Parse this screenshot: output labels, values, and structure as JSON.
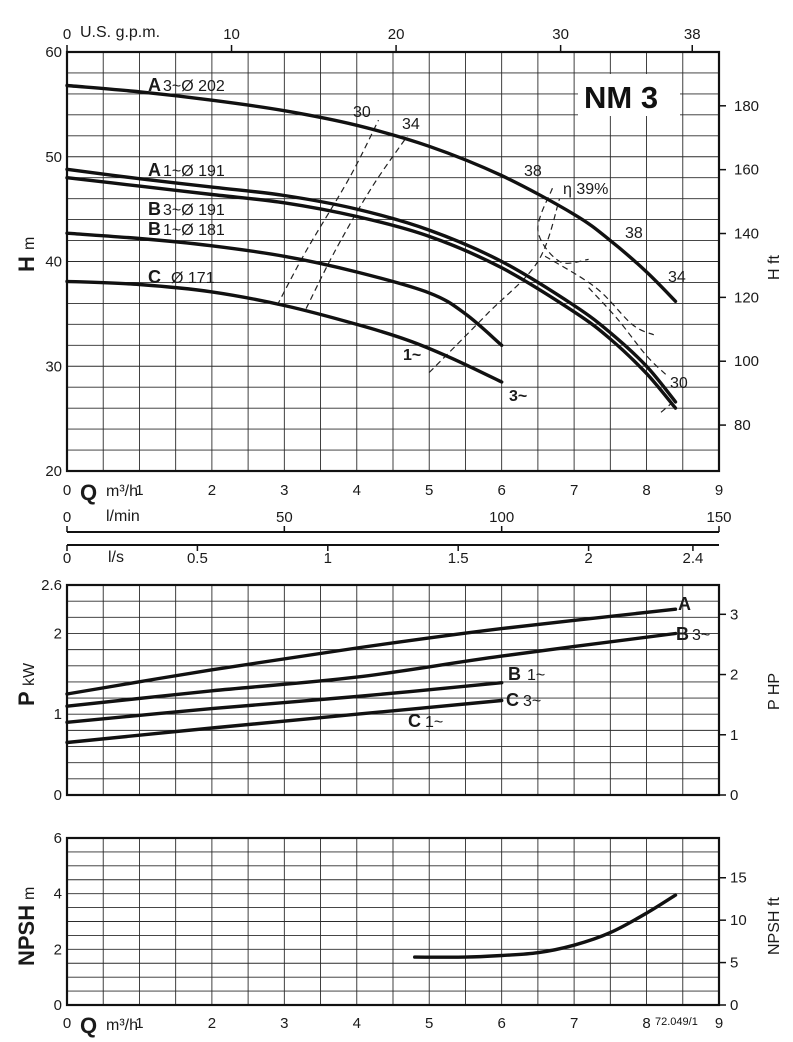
{
  "title": "NM 3",
  "footnote": "72.049/1",
  "axes": {
    "gpm_label": "U.S. g.p.m.",
    "gpm_ticks": [
      "0",
      "10",
      "20",
      "30",
      "38"
    ],
    "gpm_values": [
      0,
      10,
      20,
      30,
      38
    ],
    "q_label": "Q",
    "q_unit": "m³/h",
    "q_ticks": [
      "0",
      "1",
      "2",
      "3",
      "4",
      "5",
      "6",
      "7",
      "8",
      "9"
    ],
    "lmin_label": "l/min",
    "lmin_ticks": [
      "0",
      "50",
      "100",
      "150"
    ],
    "lmin_values": [
      0,
      50,
      100,
      150
    ],
    "ls_label": "l/s",
    "ls_ticks": [
      "0",
      "0.5",
      "1",
      "1.5",
      "2",
      "2.4"
    ],
    "ls_values": [
      0,
      0.5,
      1,
      1.5,
      2,
      2.4
    ],
    "h_label": "H",
    "h_unit": "m",
    "h_ticks": [
      "20",
      "30",
      "40",
      "50",
      "60"
    ],
    "hft_label": "H ft",
    "hft_ticks": [
      "80",
      "100",
      "120",
      "140",
      "160",
      "180"
    ],
    "hft_values": [
      80,
      100,
      120,
      140,
      160,
      180
    ],
    "p_label": "P",
    "p_unit": "kW",
    "p_ticks": [
      "0",
      "1",
      "2",
      "2.6"
    ],
    "p_values": [
      0,
      1,
      2,
      2.6
    ],
    "php_label": "P HP",
    "php_ticks": [
      "0",
      "1",
      "2",
      "3"
    ],
    "php_values": [
      0,
      1,
      2,
      3
    ],
    "npsh_label": "NPSH",
    "npsh_unit": "m",
    "npsh_ticks": [
      "0",
      "2",
      "4",
      "6"
    ],
    "npshft_label": "NPSH ft",
    "npshft_ticks": [
      "0",
      "5",
      "10",
      "15"
    ],
    "npshft_values": [
      0,
      5,
      10,
      15
    ]
  },
  "labels": {
    "a202": {
      "letter": "A",
      "text": "3~Ø 202"
    },
    "a191": {
      "letter": "A",
      "text": "1~Ø 191"
    },
    "b191": {
      "letter": "B",
      "text": "3~Ø 191"
    },
    "b181": {
      "letter": "B",
      "text": "1~Ø 181"
    },
    "c171": {
      "letter": "C",
      "text": "Ø 171"
    },
    "c1": "1~",
    "c3": "3~",
    "eta": "η 39%",
    "iso": [
      "30",
      "34",
      "38",
      "38",
      "34",
      "30"
    ],
    "p_a": "A",
    "p_b3_letter": "B",
    "p_b3_suffix": "3~",
    "p_b1_letter": "B",
    "p_b1_suffix": "1~",
    "p_c3_letter": "C",
    "p_c3_suffix": "3~",
    "p_c1_letter": "C",
    "p_c1_suffix": "1~"
  },
  "chart_data": [
    {
      "type": "line",
      "title": "NM 3",
      "xlabel": "Q m³/h",
      "ylabel": "H m",
      "xlim": [
        0,
        9
      ],
      "ylim": [
        20,
        60
      ],
      "grid": true,
      "series": [
        {
          "name": "A 3~Ø 202",
          "x": [
            0,
            1,
            2,
            3,
            4,
            5,
            6,
            7,
            7.5,
            8,
            8.4
          ],
          "y": [
            56.8,
            56.2,
            55.4,
            54.4,
            53.0,
            51.0,
            48.2,
            44.5,
            42.0,
            39.0,
            36.2
          ]
        },
        {
          "name": "A 1~Ø 191",
          "x": [
            0,
            1,
            2,
            3,
            4,
            5,
            6,
            7,
            7.5,
            8,
            8.4
          ],
          "y": [
            48.8,
            47.9,
            47.1,
            46.3,
            45.0,
            43.0,
            40.0,
            35.8,
            33.2,
            30.0,
            26.6
          ]
        },
        {
          "name": "B 3~Ø 191",
          "x": [
            0,
            1,
            2,
            3,
            4,
            5,
            6,
            7,
            7.5,
            8,
            8.4
          ],
          "y": [
            48.0,
            47.2,
            46.4,
            45.6,
            44.3,
            42.4,
            39.4,
            35.2,
            32.6,
            29.3,
            26.0
          ]
        },
        {
          "name": "B 1~Ø 181",
          "x": [
            0,
            1,
            2,
            3,
            4,
            5,
            5.5,
            6
          ],
          "y": [
            42.7,
            42.2,
            41.5,
            40.5,
            39.0,
            37.0,
            35.0,
            32.0
          ]
        },
        {
          "name": "C Ø 171",
          "x": [
            0,
            1,
            2,
            3,
            4,
            4.7,
            5.3,
            6
          ],
          "y": [
            38.1,
            37.8,
            37.1,
            35.8,
            34.0,
            32.5,
            30.8,
            28.5
          ]
        }
      ],
      "iso_efficiency": [
        {
          "label": "30",
          "x": [
            2.9,
            3.3,
            3.9,
            4.3
          ],
          "y": [
            35.8,
            41.0,
            48.0,
            53.5
          ]
        },
        {
          "label": "34",
          "x": [
            3.3,
            3.7,
            4.2,
            4.7
          ],
          "y": [
            35.5,
            41.0,
            47.0,
            52.0
          ]
        },
        {
          "label": "38",
          "x": [
            5.0,
            5.8,
            6.5,
            6.8
          ],
          "y": [
            29.4,
            35.0,
            40.0,
            46.0
          ]
        },
        {
          "label": "η 39%",
          "x": [
            6.7,
            6.5,
            6.8,
            7.2
          ],
          "y": [
            47.0,
            43.0,
            40.0,
            40.2
          ]
        },
        {
          "label": "38",
          "x": [
            6.6,
            7.3,
            7.8,
            8.1
          ],
          "y": [
            40.5,
            37.5,
            34.0,
            33.0
          ]
        },
        {
          "label": "34",
          "x": [
            7.2,
            7.6,
            8.0,
            8.3
          ],
          "y": [
            37.5,
            34.5,
            31.0,
            29.0
          ]
        },
        {
          "label": "30",
          "x": [
            8.2,
            8.35
          ],
          "y": [
            25.6,
            26.5
          ]
        }
      ]
    },
    {
      "type": "line",
      "xlabel": "Q m³/h",
      "ylabel": "P kW",
      "xlim": [
        0,
        9
      ],
      "ylim": [
        0,
        2.6
      ],
      "grid": true,
      "series": [
        {
          "name": "A",
          "x": [
            0,
            2,
            4,
            6,
            8.4
          ],
          "y": [
            1.25,
            1.55,
            1.82,
            2.06,
            2.3
          ]
        },
        {
          "name": "B 3~",
          "x": [
            0,
            2,
            4,
            6,
            8.4
          ],
          "y": [
            1.1,
            1.29,
            1.46,
            1.72,
            2.0
          ]
        },
        {
          "name": "B 1~",
          "x": [
            0,
            2,
            4,
            6
          ],
          "y": [
            0.9,
            1.07,
            1.22,
            1.39
          ]
        },
        {
          "name": "C 3~",
          "x": [
            0,
            2,
            4,
            6
          ],
          "y": [
            0.65,
            0.83,
            1.0,
            1.17
          ]
        }
      ]
    },
    {
      "type": "line",
      "xlabel": "Q m³/h",
      "ylabel": "NPSH m",
      "xlim": [
        0,
        9
      ],
      "ylim": [
        0,
        6
      ],
      "grid": true,
      "series": [
        {
          "name": "NPSH",
          "x": [
            4.8,
            5.5,
            6.0,
            6.5,
            7.0,
            7.5,
            8.0,
            8.4
          ],
          "y": [
            1.72,
            1.72,
            1.78,
            1.88,
            2.15,
            2.6,
            3.3,
            3.95
          ]
        }
      ]
    }
  ]
}
